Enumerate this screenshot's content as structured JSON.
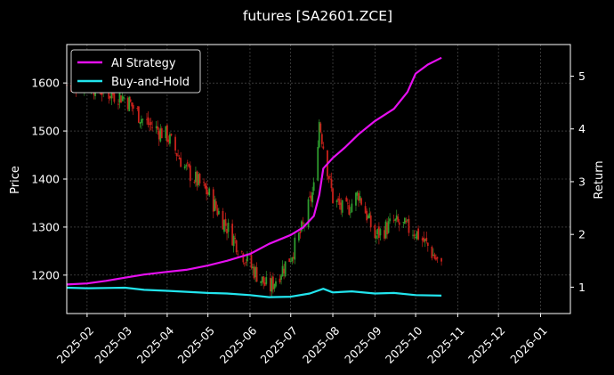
{
  "chart_data": {
    "type": "line",
    "title": "futures [SA2601.ZCE]",
    "xlabel": "",
    "ylabel_left": "Price",
    "ylabel_right": "Return",
    "x_tick_labels": [
      "2025-02",
      "2025-03",
      "2025-04",
      "2025-05",
      "2025-06",
      "2025-07",
      "2025-08",
      "2025-09",
      "2025-10",
      "2025-11",
      "2025-12",
      "2026-01"
    ],
    "x_ticks": [
      "2025-02-01",
      "2025-03-01",
      "2025-04-01",
      "2025-05-01",
      "2025-06-01",
      "2025-07-01",
      "2025-08-01",
      "2025-09-01",
      "2025-10-01",
      "2025-11-01",
      "2025-12-01",
      "2026-01-01"
    ],
    "xlim": [
      "2025-01-17",
      "2026-01-23"
    ],
    "ylim_left": [
      1120,
      1680
    ],
    "ylim_right": [
      0.5,
      5.6
    ],
    "y_ticks_left": [
      1200,
      1300,
      1400,
      1500,
      1600
    ],
    "y_ticks_right": [
      1,
      2,
      3,
      4,
      5
    ],
    "grid": true,
    "legend_position": "top-left",
    "colors": {
      "background": "#000000",
      "grid": "#5a5a5a",
      "text": "#ffffff",
      "candle_up": "#2e9b2e",
      "candle_down": "#c8211b",
      "ai_strategy": "#e60ff0",
      "buy_and_hold": "#22e5ee"
    },
    "series": [
      {
        "name": "AI Strategy",
        "axis": "right",
        "color": "#e60ff0",
        "points": [
          [
            "2025-01-17",
            1.05
          ],
          [
            "2025-02-01",
            1.07
          ],
          [
            "2025-02-15",
            1.12
          ],
          [
            "2025-03-01",
            1.18
          ],
          [
            "2025-03-15",
            1.24
          ],
          [
            "2025-04-01",
            1.29
          ],
          [
            "2025-04-15",
            1.33
          ],
          [
            "2025-05-01",
            1.41
          ],
          [
            "2025-05-15",
            1.5
          ],
          [
            "2025-06-01",
            1.63
          ],
          [
            "2025-06-15",
            1.82
          ],
          [
            "2025-07-01",
            1.99
          ],
          [
            "2025-07-10",
            2.13
          ],
          [
            "2025-07-18",
            2.35
          ],
          [
            "2025-07-22",
            2.75
          ],
          [
            "2025-07-25",
            3.25
          ],
          [
            "2025-08-01",
            3.45
          ],
          [
            "2025-08-10",
            3.65
          ],
          [
            "2025-08-20",
            3.9
          ],
          [
            "2025-09-01",
            4.15
          ],
          [
            "2025-09-15",
            4.38
          ],
          [
            "2025-09-25",
            4.7
          ],
          [
            "2025-10-01",
            5.05
          ],
          [
            "2025-10-10",
            5.22
          ],
          [
            "2025-10-20",
            5.35
          ]
        ]
      },
      {
        "name": "Buy-and-Hold",
        "axis": "right",
        "color": "#22e5ee",
        "points": [
          [
            "2025-01-17",
            0.99
          ],
          [
            "2025-02-01",
            0.98
          ],
          [
            "2025-03-01",
            0.99
          ],
          [
            "2025-03-15",
            0.95
          ],
          [
            "2025-04-01",
            0.93
          ],
          [
            "2025-05-01",
            0.89
          ],
          [
            "2025-05-15",
            0.88
          ],
          [
            "2025-06-01",
            0.85
          ],
          [
            "2025-06-15",
            0.81
          ],
          [
            "2025-07-01",
            0.82
          ],
          [
            "2025-07-15",
            0.88
          ],
          [
            "2025-07-25",
            0.97
          ],
          [
            "2025-08-01",
            0.9
          ],
          [
            "2025-08-15",
            0.92
          ],
          [
            "2025-09-01",
            0.88
          ],
          [
            "2025-09-15",
            0.89
          ],
          [
            "2025-10-01",
            0.85
          ],
          [
            "2025-10-20",
            0.84
          ]
        ]
      }
    ],
    "candlestick": {
      "axis": "left",
      "closes": [
        [
          "2025-01-17",
          1595
        ],
        [
          "2025-02-01",
          1600
        ],
        [
          "2025-02-15",
          1580
        ],
        [
          "2025-03-01",
          1570
        ],
        [
          "2025-03-15",
          1520
        ],
        [
          "2025-04-01",
          1490
        ],
        [
          "2025-04-15",
          1420
        ],
        [
          "2025-05-01",
          1370
        ],
        [
          "2025-05-15",
          1300
        ],
        [
          "2025-06-01",
          1220
        ],
        [
          "2025-06-15",
          1170
        ],
        [
          "2025-07-01",
          1240
        ],
        [
          "2025-07-10",
          1300
        ],
        [
          "2025-07-18",
          1380
        ],
        [
          "2025-07-22",
          1520
        ],
        [
          "2025-07-25",
          1470
        ],
        [
          "2025-08-01",
          1360
        ],
        [
          "2025-08-10",
          1330
        ],
        [
          "2025-08-20",
          1370
        ],
        [
          "2025-09-01",
          1280
        ],
        [
          "2025-09-15",
          1310
        ],
        [
          "2025-10-01",
          1290
        ],
        [
          "2025-10-10",
          1260
        ],
        [
          "2025-10-20",
          1215
        ]
      ]
    }
  },
  "legend": {
    "items": [
      {
        "label": "AI Strategy",
        "color": "#e60ff0"
      },
      {
        "label": "Buy-and-Hold",
        "color": "#22e5ee"
      }
    ]
  }
}
